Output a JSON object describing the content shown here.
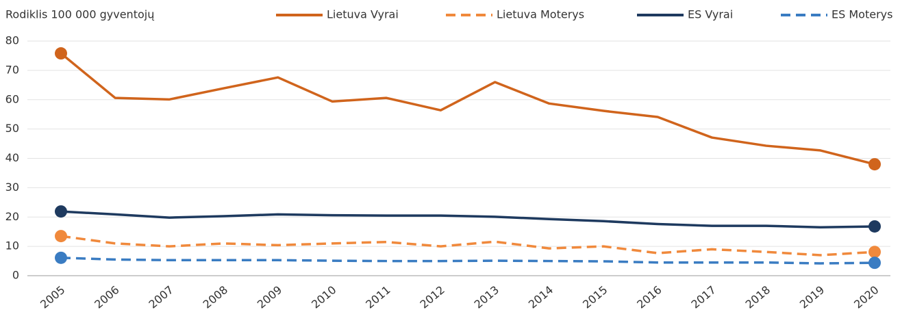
{
  "chart_data": {
    "type": "line",
    "title": "Rodiklis 100 000 gyventojų",
    "categories": [
      "2005",
      "2006",
      "2007",
      "2008",
      "2009",
      "2010",
      "2011",
      "2012",
      "2013",
      "2014",
      "2015",
      "2016",
      "2017",
      "2018",
      "2019",
      "2020"
    ],
    "series": [
      {
        "name": "Lietuva Vyrai",
        "color": "#d0641c",
        "dashed": false,
        "values": [
          75.8,
          60.6,
          60.1,
          63.9,
          67.6,
          59.4,
          60.6,
          56.4,
          66.0,
          58.7,
          56.2,
          54.1,
          47.1,
          44.3,
          42.7,
          38.0
        ]
      },
      {
        "name": "Lietuva Moterys",
        "color": "#f0893c",
        "dashed": true,
        "values": [
          13.5,
          11.0,
          10.0,
          11.0,
          10.4,
          11.0,
          11.5,
          10.0,
          11.6,
          9.3,
          10.0,
          7.7,
          9.0,
          8.1,
          7.0,
          8.1
        ]
      },
      {
        "name": "ES Vyrai",
        "color": "#1e3a5f",
        "dashed": false,
        "values": [
          21.9,
          20.9,
          19.8,
          20.3,
          20.9,
          20.6,
          20.5,
          20.5,
          20.1,
          19.3,
          18.6,
          17.6,
          17.0,
          17.0,
          16.5,
          16.8
        ]
      },
      {
        "name": "ES Moterys",
        "color": "#3a7cc2",
        "dashed": true,
        "values": [
          6.1,
          5.5,
          5.3,
          5.3,
          5.3,
          5.1,
          5.0,
          5.0,
          5.1,
          5.0,
          4.9,
          4.5,
          4.5,
          4.5,
          4.2,
          4.4
        ]
      }
    ],
    "ylim": [
      0,
      80
    ],
    "yticks": [
      0,
      10,
      20,
      30,
      40,
      50,
      60,
      70,
      80
    ],
    "grid": true,
    "legend": "top",
    "endpoint_markers": true
  }
}
